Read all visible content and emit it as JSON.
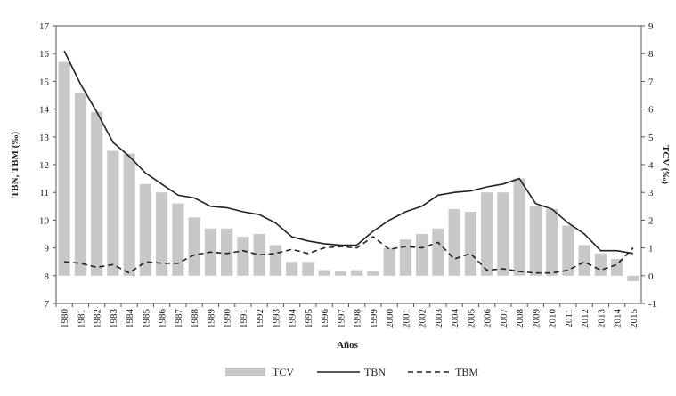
{
  "chart_data": {
    "type": "bar+line",
    "xlabel": "Años",
    "ylabel_left": "TBN, TBM (‰)",
    "ylabel_right": "TCV (‰)",
    "ylim_left": [
      7,
      17
    ],
    "ylim_right": [
      -1,
      9
    ],
    "yticks_left": [
      7,
      8,
      9,
      10,
      11,
      12,
      13,
      14,
      15,
      16,
      17
    ],
    "yticks_right": [
      -1,
      0,
      1,
      2,
      3,
      4,
      5,
      6,
      7,
      8,
      9
    ],
    "legend_position": "bottom",
    "categories": [
      "1980",
      "1981",
      "1982",
      "1983",
      "1984",
      "1985",
      "1986",
      "1987",
      "1988",
      "1989",
      "1990",
      "1991",
      "1992",
      "1993",
      "1994",
      "1995",
      "1996",
      "1997",
      "1998",
      "1999",
      "2000",
      "2001",
      "2002",
      "2003",
      "2004",
      "2005",
      "2006",
      "2007",
      "2008",
      "2009",
      "2010",
      "2011",
      "2012",
      "2013",
      "2014",
      "2015"
    ],
    "series": [
      {
        "name": "TCV",
        "kind": "bar",
        "axis": "right",
        "color": "#c8c8c8",
        "values": [
          7.7,
          6.6,
          5.9,
          4.5,
          4.4,
          3.3,
          3.0,
          2.6,
          2.1,
          1.7,
          1.7,
          1.4,
          1.5,
          1.1,
          0.5,
          0.5,
          0.2,
          0.15,
          0.2,
          0.15,
          1.0,
          1.3,
          1.5,
          1.7,
          2.4,
          2.3,
          3.0,
          3.0,
          3.5,
          2.5,
          2.4,
          1.8,
          1.1,
          0.8,
          0.6,
          -0.2
        ]
      },
      {
        "name": "TBN",
        "kind": "line",
        "axis": "left",
        "color": "#222222",
        "values": [
          16.1,
          14.9,
          13.9,
          12.8,
          12.3,
          11.7,
          11.3,
          10.9,
          10.8,
          10.5,
          10.45,
          10.3,
          10.2,
          9.9,
          9.4,
          9.25,
          9.15,
          9.1,
          9.1,
          9.6,
          10.0,
          10.3,
          10.5,
          10.9,
          11.0,
          11.05,
          11.2,
          11.3,
          11.5,
          10.6,
          10.4,
          9.9,
          9.5,
          8.9,
          8.9,
          8.8
        ]
      },
      {
        "name": "TBM",
        "kind": "dashed-line",
        "axis": "left",
        "color": "#222222",
        "values": [
          8.5,
          8.45,
          8.3,
          8.4,
          8.1,
          8.5,
          8.45,
          8.45,
          8.75,
          8.85,
          8.8,
          8.9,
          8.75,
          8.8,
          8.95,
          8.8,
          9.0,
          9.05,
          9.0,
          9.4,
          8.95,
          9.05,
          9.0,
          9.2,
          8.6,
          8.8,
          8.2,
          8.25,
          8.15,
          8.1,
          8.1,
          8.2,
          8.5,
          8.2,
          8.4,
          9.0
        ]
      }
    ]
  }
}
